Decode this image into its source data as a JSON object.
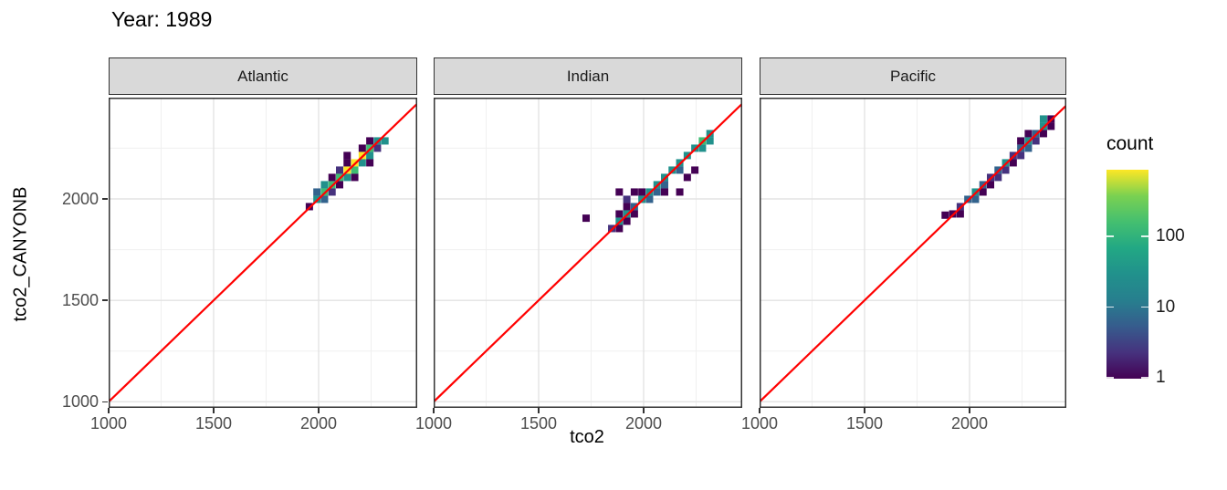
{
  "title": "Year: 1989",
  "chart_data": {
    "type": "heatmap",
    "subtype": "2d-binned scatter (geom_bin2d) with identity line, faceted by ocean basin",
    "title": "Year: 1989",
    "xlabel": "tco2",
    "ylabel": "tco2_CANYONB",
    "x_range": [
      1000,
      2470
    ],
    "y_range": [
      970,
      2500
    ],
    "x_ticks": [
      1000,
      1500,
      2000
    ],
    "y_ticks": [
      1000,
      1500,
      2000
    ],
    "x_minor_gridlines": [
      1250,
      1750,
      2250
    ],
    "y_minor_gridlines": [
      1250,
      1750,
      2250
    ],
    "grid": true,
    "bin_size": 36,
    "identity_line": {
      "slope": 1,
      "intercept": 0,
      "color": "#ff0000"
    },
    "legend": {
      "title": "count",
      "position": "right",
      "scale": "log10",
      "ticks": [
        100,
        10,
        1
      ],
      "range": [
        1,
        900
      ]
    },
    "count_levels": {
      "p": 1,
      "i": 3,
      "b": 10,
      "t": 40,
      "g": 150,
      "y": 600
    },
    "palette": {
      "p": "#440154",
      "i": "#46327e",
      "b": "#33638d",
      "t": "#21918c",
      "g": "#3fbc73",
      "y": "#fde725"
    },
    "viridis_gradient": [
      "#440154",
      "#46327e",
      "#365c8d",
      "#277f8e",
      "#21918c",
      "#22a884",
      "#44bf70",
      "#7ad151",
      "#fde725"
    ],
    "facets": [
      {
        "label": "Atlantic",
        "bins": [
          [
            1956,
            1962,
            "p"
          ],
          [
            1992,
            1998,
            "t"
          ],
          [
            1992,
            2034,
            "b"
          ],
          [
            2028,
            2034,
            "g"
          ],
          [
            2028,
            1998,
            "b"
          ],
          [
            2028,
            2070,
            "t"
          ],
          [
            2064,
            2070,
            "g"
          ],
          [
            2064,
            2034,
            "i"
          ],
          [
            2064,
            2106,
            "p"
          ],
          [
            2100,
            2106,
            "g"
          ],
          [
            2100,
            2070,
            "p"
          ],
          [
            2100,
            2142,
            "i"
          ],
          [
            2136,
            2142,
            "y"
          ],
          [
            2136,
            2106,
            "t"
          ],
          [
            2136,
            2178,
            "p"
          ],
          [
            2136,
            2214,
            "p"
          ],
          [
            2172,
            2178,
            "y"
          ],
          [
            2172,
            2142,
            "g"
          ],
          [
            2172,
            2106,
            "p"
          ],
          [
            2208,
            2214,
            "y"
          ],
          [
            2208,
            2178,
            "t"
          ],
          [
            2208,
            2250,
            "p"
          ],
          [
            2244,
            2250,
            "g"
          ],
          [
            2244,
            2214,
            "t"
          ],
          [
            2244,
            2178,
            "p"
          ],
          [
            2244,
            2286,
            "p"
          ],
          [
            2280,
            2286,
            "t"
          ],
          [
            2280,
            2250,
            "i"
          ],
          [
            2316,
            2286,
            "t"
          ]
        ]
      },
      {
        "label": "Indian",
        "bins": [
          [
            1726,
            1905,
            "p"
          ],
          [
            1848,
            1854,
            "i"
          ],
          [
            1884,
            1890,
            "t"
          ],
          [
            1884,
            1854,
            "p"
          ],
          [
            1884,
            1926,
            "p"
          ],
          [
            1884,
            2034,
            "p"
          ],
          [
            1920,
            1926,
            "t"
          ],
          [
            1920,
            1890,
            "p"
          ],
          [
            1920,
            1998,
            "i"
          ],
          [
            1920,
            1962,
            "p"
          ],
          [
            1956,
            1962,
            "b"
          ],
          [
            1956,
            1926,
            "p"
          ],
          [
            1956,
            2034,
            "p"
          ],
          [
            1992,
            1998,
            "t"
          ],
          [
            1992,
            2034,
            "p"
          ],
          [
            2028,
            2034,
            "t"
          ],
          [
            2028,
            1998,
            "b"
          ],
          [
            2064,
            2070,
            "t"
          ],
          [
            2064,
            2034,
            "b"
          ],
          [
            2100,
            2106,
            "t"
          ],
          [
            2100,
            2070,
            "b"
          ],
          [
            2100,
            2034,
            "p"
          ],
          [
            2136,
            2142,
            "t"
          ],
          [
            2172,
            2178,
            "t"
          ],
          [
            2172,
            2142,
            "b"
          ],
          [
            2172,
            2034,
            "p"
          ],
          [
            2208,
            2214,
            "t"
          ],
          [
            2208,
            2106,
            "p"
          ],
          [
            2244,
            2250,
            "t"
          ],
          [
            2244,
            2142,
            "p"
          ],
          [
            2280,
            2286,
            "g"
          ],
          [
            2280,
            2250,
            "t"
          ],
          [
            2316,
            2322,
            "t"
          ],
          [
            2316,
            2286,
            "t"
          ]
        ]
      },
      {
        "label": "Pacific",
        "bins": [
          [
            1884,
            1920,
            "p"
          ],
          [
            1920,
            1926,
            "p"
          ],
          [
            1956,
            1962,
            "i"
          ],
          [
            1956,
            1926,
            "p"
          ],
          [
            1992,
            1998,
            "b"
          ],
          [
            2028,
            2034,
            "t"
          ],
          [
            2028,
            1998,
            "b"
          ],
          [
            2064,
            2070,
            "b"
          ],
          [
            2064,
            2034,
            "p"
          ],
          [
            2100,
            2106,
            "i"
          ],
          [
            2100,
            2070,
            "p"
          ],
          [
            2136,
            2142,
            "b"
          ],
          [
            2136,
            2106,
            "i"
          ],
          [
            2172,
            2178,
            "t"
          ],
          [
            2172,
            2142,
            "i"
          ],
          [
            2208,
            2214,
            "i"
          ],
          [
            2208,
            2178,
            "p"
          ],
          [
            2244,
            2250,
            "b"
          ],
          [
            2244,
            2214,
            "i"
          ],
          [
            2244,
            2286,
            "p"
          ],
          [
            2280,
            2286,
            "t"
          ],
          [
            2280,
            2250,
            "b"
          ],
          [
            2280,
            2322,
            "p"
          ],
          [
            2316,
            2322,
            "b"
          ],
          [
            2316,
            2286,
            "i"
          ],
          [
            2352,
            2358,
            "t"
          ],
          [
            2352,
            2322,
            "p"
          ],
          [
            2352,
            2394,
            "t"
          ],
          [
            2388,
            2394,
            "p"
          ],
          [
            2388,
            2358,
            "p"
          ]
        ]
      }
    ]
  },
  "colors": {
    "strip_bg": "#d9d9d9",
    "panel_border": "#333333",
    "grid_major": "#e3e3e3",
    "grid_minor": "#f0f0f0",
    "tick_text": "#4d4d4d",
    "text": "#000000",
    "background": "#ffffff"
  }
}
